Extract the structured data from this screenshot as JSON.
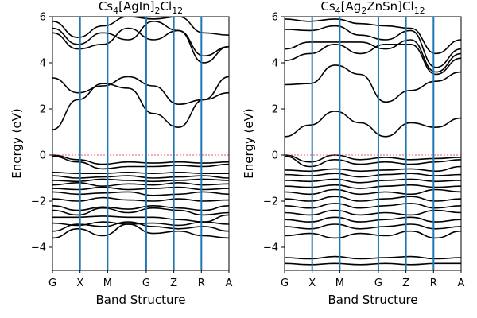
{
  "chart_data": [
    {
      "type": "line",
      "title": "Cs4[AgIn]2Cl12",
      "title_parts": {
        "a": "Cs",
        "a_sub": "4",
        "b": "[AgIn]",
        "b_sub": "2",
        "c": "Cl",
        "c_sub": "12"
      },
      "xlabel": "Band Structure",
      "ylabel": "Energy (eV)",
      "ylim": [
        -5,
        6
      ],
      "yticks": [
        -4,
        -2,
        0,
        2,
        4,
        6
      ],
      "kpoints": [
        {
          "label": "G",
          "x": 0.0
        },
        {
          "label": "X",
          "x": 0.5
        },
        {
          "label": "M",
          "x": 1.0
        },
        {
          "label": "G",
          "x": 1.7
        },
        {
          "label": "Z",
          "x": 2.2
        },
        {
          "label": "R",
          "x": 2.7
        },
        {
          "label": "A",
          "x": 3.2
        }
      ],
      "fermi_level": 0,
      "bands": [
        [
          -3.6,
          -3.2,
          -3.5,
          -3.0,
          -3.4,
          -3.3,
          -3.5,
          -3.6
        ],
        [
          -3.3,
          -3.0,
          -3.1,
          -2.9,
          -3.1,
          -3.2,
          -3.1,
          -3.3
        ],
        [
          -2.95,
          -3.05,
          -2.9,
          -3.0,
          -2.95,
          -3.05,
          -2.9,
          -3.0
        ],
        [
          -2.7,
          -2.7,
          -2.65,
          -2.7,
          -2.7,
          -2.8,
          -2.9,
          -2.6
        ],
        [
          -2.4,
          -2.6,
          -2.3,
          -2.5,
          -2.3,
          -2.4,
          -2.6,
          -2.5
        ],
        [
          -2.2,
          -2.4,
          -2.25,
          -2.35,
          -2.2,
          -2.3,
          -2.4,
          -2.2
        ],
        [
          -1.9,
          -2.0,
          -1.85,
          -1.95,
          -2.0,
          -1.9,
          -2.0,
          -1.95
        ],
        [
          -1.6,
          -1.7,
          -1.65,
          -1.6,
          -1.75,
          -1.7,
          -1.6,
          -1.7
        ],
        [
          -1.45,
          -1.5,
          -1.4,
          -1.5,
          -1.45,
          -1.4,
          -1.5,
          -1.45
        ],
        [
          -1.3,
          -1.2,
          -1.35,
          -1.25,
          -1.3,
          -1.2,
          -1.3,
          -1.25
        ],
        [
          -1.1,
          -1.15,
          -1.05,
          -1.1,
          -1.15,
          -1.1,
          -1.05,
          -1.1
        ],
        [
          -0.9,
          -1.0,
          -0.95,
          -0.9,
          -1.0,
          -0.95,
          -0.9,
          -1.0
        ],
        [
          -0.75,
          -0.8,
          -0.8,
          -0.75,
          -0.8,
          -0.75,
          -0.8,
          -0.8
        ],
        [
          -0.05,
          -0.3,
          -0.6,
          -0.5,
          -0.5,
          -0.45,
          -0.5,
          -0.4
        ],
        [
          0.0,
          -0.2,
          -0.4,
          -0.3,
          -0.35,
          -0.3,
          -0.35,
          -0.3
        ],
        [
          1.1,
          2.4,
          3.1,
          2.9,
          1.8,
          1.2,
          2.4,
          2.7
        ],
        [
          3.35,
          2.7,
          3.0,
          3.4,
          3.0,
          2.2,
          2.4,
          3.4
        ],
        [
          5.3,
          4.6,
          4.8,
          5.5,
          5.0,
          5.4,
          4.0,
          4.7
        ],
        [
          5.5,
          4.8,
          5.3,
          5.0,
          5.8,
          5.4,
          4.3,
          4.7
        ],
        [
          5.8,
          5.1,
          5.6,
          6.0,
          5.9,
          6.0,
          5.3,
          5.2
        ]
      ]
    },
    {
      "type": "line",
      "title": "Cs4[Ag2ZnSn]Cl12",
      "title_parts": {
        "a": "Cs",
        "a_sub": "4",
        "b": "[Ag",
        "b_sub": "2",
        "c": "ZnSn]Cl",
        "c_sub": "12"
      },
      "xlabel": "Band Structure",
      "ylabel": "Energy (eV)",
      "ylim": [
        -5,
        6
      ],
      "yticks": [
        -4,
        -2,
        0,
        2,
        4,
        6
      ],
      "kpoints": [
        {
          "label": "G",
          "x": 0.0
        },
        {
          "label": "X",
          "x": 0.5
        },
        {
          "label": "M",
          "x": 1.0
        },
        {
          "label": "G",
          "x": 1.7
        },
        {
          "label": "Z",
          "x": 2.2
        },
        {
          "label": "R",
          "x": 2.7
        },
        {
          "label": "A",
          "x": 3.2
        }
      ],
      "fermi_level": 0,
      "bands": [
        [
          -4.7,
          -4.75,
          -4.7,
          -4.75,
          -4.7,
          -4.75,
          -4.7,
          -4.7
        ],
        [
          -4.45,
          -4.5,
          -4.4,
          -4.5,
          -4.45,
          -4.4,
          -4.5,
          -4.45
        ],
        [
          -3.5,
          -3.4,
          -3.6,
          -3.4,
          -3.5,
          -3.3,
          -3.6,
          -3.3
        ],
        [
          -3.1,
          -3.2,
          -3.0,
          -3.2,
          -3.1,
          -3.0,
          -3.2,
          -3.1
        ],
        [
          -2.8,
          -2.9,
          -2.7,
          -2.9,
          -2.8,
          -2.7,
          -2.9,
          -2.8
        ],
        [
          -2.5,
          -2.6,
          -2.4,
          -2.6,
          -2.5,
          -2.6,
          -2.4,
          -2.5
        ],
        [
          -2.2,
          -2.3,
          -2.1,
          -2.3,
          -2.2,
          -2.1,
          -2.3,
          -2.2
        ],
        [
          -1.9,
          -2.0,
          -1.8,
          -2.0,
          -1.9,
          -1.8,
          -2.0,
          -1.9
        ],
        [
          -1.6,
          -1.7,
          -1.5,
          -1.7,
          -1.6,
          -1.7,
          -1.5,
          -1.6
        ],
        [
          -1.35,
          -1.4,
          -1.3,
          -1.45,
          -1.35,
          -1.3,
          -1.4,
          -1.35
        ],
        [
          -1.1,
          -1.15,
          -1.05,
          -1.2,
          -1.1,
          -1.05,
          -1.15,
          -1.1
        ],
        [
          -0.85,
          -0.9,
          -0.8,
          -0.95,
          -0.85,
          -0.8,
          -0.9,
          -0.85
        ],
        [
          -0.65,
          -0.7,
          -0.6,
          -0.7,
          -0.65,
          -0.6,
          -0.7,
          -0.5
        ],
        [
          -0.05,
          -0.5,
          -0.2,
          -0.4,
          -0.3,
          -0.4,
          -0.3,
          -0.2
        ],
        [
          0.0,
          -0.3,
          0.0,
          -0.2,
          -0.1,
          -0.2,
          -0.15,
          -0.1
        ],
        [
          0.8,
          1.3,
          1.9,
          1.4,
          0.8,
          1.4,
          1.2,
          1.6
        ],
        [
          3.05,
          3.1,
          3.9,
          3.5,
          2.3,
          2.8,
          3.2,
          3.6
        ],
        [
          4.1,
          4.4,
          4.8,
          4.4,
          4.8,
          4.8,
          3.5,
          4.2
        ],
        [
          4.6,
          4.9,
          4.9,
          4.9,
          4.6,
          5.0,
          3.6,
          4.4
        ],
        [
          5.45,
          5.4,
          5.6,
          5.2,
          5.0,
          5.4,
          3.8,
          4.6
        ],
        [
          5.9,
          5.8,
          5.9,
          5.7,
          5.6,
          5.5,
          4.4,
          5.0
        ]
      ]
    }
  ]
}
